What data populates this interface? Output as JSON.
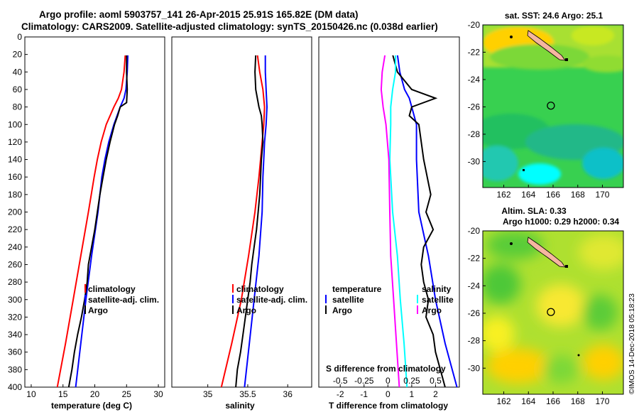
{
  "header": {
    "title_line1": "Argo profile: aoml 5903757_141 26-Apr-2015 25.91S 165.82E (DM data)",
    "title_line2": "Climatology: CARS2009. Satellite-adjusted climatology: synTS_20150426.nc (0.038d earlier)"
  },
  "credit": "©IMOS 14-Dec-2018 05:18:23",
  "colors": {
    "climatology": "#ff0000",
    "satellite": "#0000ff",
    "argo": "#000000",
    "sal_diff": "#ff00ff",
    "sal_sat_diff": "#00ffff"
  },
  "chart_data": [
    {
      "type": "line",
      "title": "",
      "xlabel": "temperature (deg C)",
      "ylabel": "",
      "xlim": [
        9,
        31
      ],
      "ylim": [
        400,
        0
      ],
      "xticks": [
        10,
        15,
        20,
        25,
        30
      ],
      "yticks": [
        0,
        20,
        40,
        60,
        80,
        100,
        120,
        140,
        160,
        180,
        200,
        220,
        240,
        260,
        280,
        300,
        320,
        340,
        360,
        380,
        400
      ],
      "legend": [
        "climatology",
        "satellite-adj. clim.",
        "Argo"
      ],
      "series": [
        {
          "name": "climatology",
          "color": "#ff0000",
          "depth": [
            0,
            20,
            40,
            60,
            70,
            80,
            100,
            120,
            140,
            160,
            200,
            250,
            300,
            350,
            400
          ],
          "values": [
            24.8,
            24.8,
            24.6,
            24.2,
            23.7,
            23.0,
            21.8,
            21.0,
            20.4,
            19.9,
            19.0,
            17.8,
            16.6,
            15.4,
            14.1
          ]
        },
        {
          "name": "satellite-adj. clim.",
          "color": "#0000ff",
          "depth": [
            0,
            20,
            40,
            60,
            70,
            80,
            100,
            120,
            140,
            160,
            200,
            250,
            300,
            350,
            400
          ],
          "values": [
            25.2,
            25.2,
            25.1,
            24.9,
            24.6,
            24.0,
            23.0,
            22.2,
            21.6,
            21.1,
            20.5,
            19.5,
            18.6,
            17.8,
            17.0
          ]
        },
        {
          "name": "Argo",
          "color": "#000000",
          "depth": [
            0,
            20,
            40,
            60,
            75,
            80,
            90,
            100,
            120,
            140,
            160,
            180,
            200,
            220,
            240,
            260,
            280,
            300,
            320,
            340,
            360,
            380,
            400
          ],
          "values": [
            25.0,
            25.0,
            25.0,
            25.1,
            25.0,
            24.0,
            23.6,
            23.1,
            22.4,
            21.8,
            21.3,
            20.8,
            20.4,
            20.0,
            19.5,
            19.0,
            18.8,
            18.4,
            17.9,
            17.3,
            16.8,
            16.4,
            15.9
          ]
        }
      ]
    },
    {
      "type": "line",
      "title": "",
      "xlabel": "salinity",
      "ylabel": "",
      "xlim": [
        34.55,
        36.3
      ],
      "ylim": [
        400,
        0
      ],
      "xticks": [
        35,
        35.5,
        36
      ],
      "legend": [
        "climatology",
        "satellite-adj. clim.",
        "Argo"
      ],
      "series": [
        {
          "name": "climatology",
          "color": "#ff0000",
          "depth": [
            0,
            20,
            40,
            60,
            80,
            100,
            120,
            140,
            160,
            200,
            250,
            300,
            350,
            400
          ],
          "values": [
            35.6,
            35.62,
            35.65,
            35.69,
            35.71,
            35.7,
            35.68,
            35.66,
            35.64,
            35.59,
            35.51,
            35.42,
            35.3,
            35.17
          ]
        },
        {
          "name": "satellite-adj. clim.",
          "color": "#0000ff",
          "depth": [
            0,
            20,
            40,
            60,
            80,
            100,
            120,
            140,
            160,
            200,
            250,
            300,
            350,
            400
          ],
          "values": [
            35.73,
            35.72,
            35.72,
            35.73,
            35.74,
            35.73,
            35.71,
            35.7,
            35.69,
            35.68,
            35.64,
            35.58,
            35.52,
            35.46
          ]
        },
        {
          "name": "Argo",
          "color": "#000000",
          "depth": [
            0,
            20,
            40,
            60,
            80,
            90,
            100,
            120,
            140,
            160,
            180,
            200,
            220,
            240,
            260,
            280,
            300,
            320,
            340,
            360,
            380,
            400
          ],
          "values": [
            35.6,
            35.6,
            35.59,
            35.6,
            35.64,
            35.67,
            35.68,
            35.69,
            35.67,
            35.66,
            35.65,
            35.63,
            35.61,
            35.58,
            35.55,
            35.53,
            35.5,
            35.47,
            35.44,
            35.41,
            35.37,
            35.35
          ]
        }
      ]
    },
    {
      "type": "line",
      "title": "",
      "xlabel": "T difference from climatology",
      "xlabel2": "S difference from climatology",
      "ylabel": "",
      "xlim": [
        -2.9,
        3.0
      ],
      "xticks": [
        -2,
        -1,
        0,
        1,
        2
      ],
      "xticks_secondary": [
        "-0.5",
        "-0.25",
        "0",
        "0.25",
        "0.5"
      ],
      "ylim": [
        400,
        0
      ],
      "legend_temperature": [
        "temperature",
        "satellite",
        "Argo"
      ],
      "legend_salinity": [
        "salinity",
        "satellite",
        "Argo"
      ],
      "series": [
        {
          "name": "T satellite",
          "color": "#0000ff",
          "depth": [
            0,
            20,
            40,
            60,
            70,
            80,
            100,
            140,
            200,
            250,
            300,
            350,
            400
          ],
          "values": [
            0.4,
            0.4,
            0.5,
            0.7,
            0.9,
            1.0,
            1.2,
            1.2,
            1.3,
            1.7,
            2.0,
            2.4,
            2.9
          ]
        },
        {
          "name": "T Argo",
          "color": "#000000",
          "depth": [
            0,
            20,
            40,
            60,
            70,
            80,
            90,
            100,
            140,
            180,
            200,
            220,
            240,
            260,
            280,
            300,
            320,
            340,
            360,
            380,
            400
          ],
          "values": [
            0.2,
            0.2,
            0.4,
            1.0,
            2.0,
            1.0,
            0.9,
            1.3,
            1.5,
            1.8,
            1.6,
            1.9,
            1.5,
            1.4,
            1.5,
            1.7,
            1.6,
            1.9,
            2.0,
            2.2,
            2.4
          ]
        },
        {
          "name": "S satellite",
          "color": "#00ffff",
          "depth": [
            0,
            20,
            40,
            60,
            80,
            100,
            140,
            200,
            250,
            300,
            350,
            400
          ],
          "values": [
            0.1,
            0.08,
            0.08,
            0.05,
            0.03,
            0.03,
            0.02,
            0.05,
            0.1,
            0.13,
            0.17,
            0.2
          ]
        },
        {
          "name": "S Argo",
          "color": "#ff00ff",
          "depth": [
            0,
            20,
            40,
            60,
            80,
            100,
            140,
            200,
            250,
            300,
            350,
            400
          ],
          "values": [
            0.0,
            -0.03,
            -0.06,
            -0.07,
            -0.05,
            -0.02,
            0.01,
            0.02,
            0.03,
            0.06,
            0.09,
            0.12
          ]
        }
      ]
    },
    {
      "type": "heatmap",
      "title": "sat. SST: 24.6 Argo: 25.1",
      "xlabel": "",
      "ylabel": "",
      "xlim": [
        160.3,
        171.7
      ],
      "ylim": [
        -31.9,
        -20
      ],
      "xticks": [
        162,
        164,
        166,
        168,
        170
      ],
      "yticks": [
        -20,
        -22,
        -24,
        -26,
        -28,
        -30
      ],
      "marker": {
        "lon": 165.82,
        "lat": -25.91
      }
    },
    {
      "type": "heatmap",
      "title": "Altim. SLA: 0.33",
      "subtitle": "Argo h1000: 0.29 h2000: 0.34",
      "xlabel": "",
      "ylabel": "",
      "xlim": [
        160.3,
        171.7
      ],
      "ylim": [
        -31.9,
        -20
      ],
      "xticks": [
        162,
        164,
        166,
        168,
        170
      ],
      "yticks": [
        -20,
        -22,
        -24,
        -26,
        -28,
        -30
      ],
      "marker": {
        "lon": 165.82,
        "lat": -25.91
      }
    }
  ]
}
